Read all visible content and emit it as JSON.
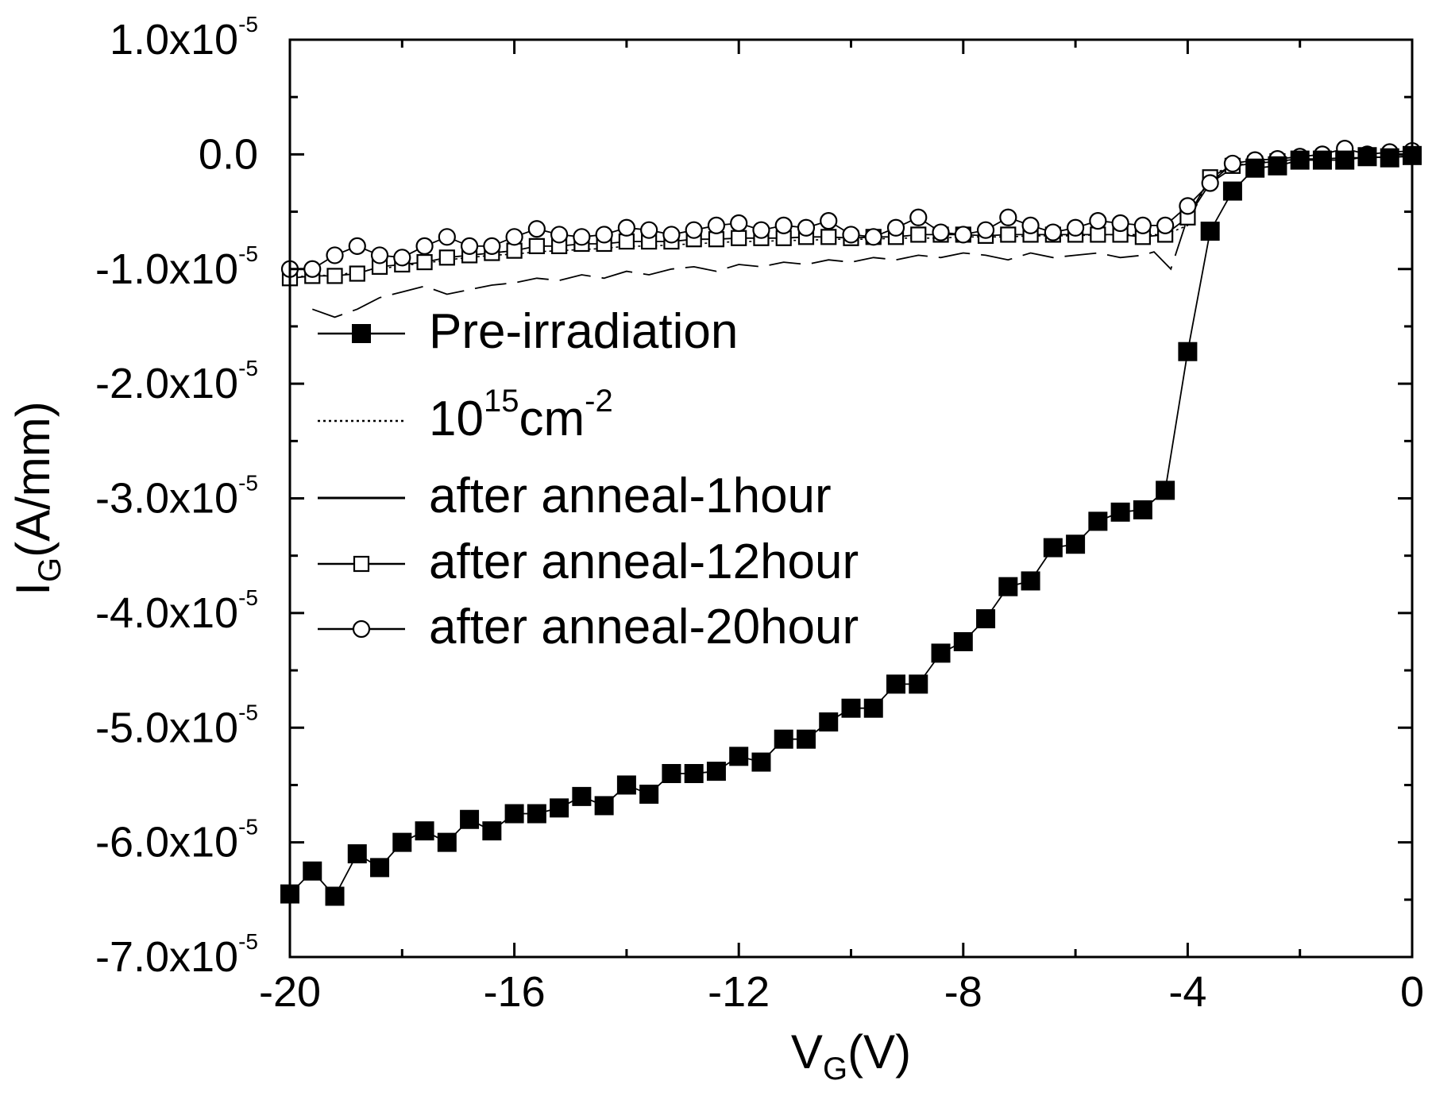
{
  "chart_data": {
    "type": "scatter",
    "xlabel": {
      "main": "V",
      "sub": "G",
      "unit": "(V)"
    },
    "ylabel": {
      "main": "I",
      "sub": "G",
      "unit": "(A/mm)"
    },
    "xlim": [
      -20,
      0
    ],
    "ylim": [
      -7e-05,
      1e-05
    ],
    "xticks": [
      -20,
      -16,
      -12,
      -8,
      -4,
      0
    ],
    "xtick_labels": [
      "-20",
      "-16",
      "-12",
      "-8",
      "-4",
      "0"
    ],
    "yticks": [
      1e-05,
      0,
      -1e-05,
      -2e-05,
      -3e-05,
      -4e-05,
      -5e-05,
      -6e-05,
      -7e-05
    ],
    "ytick_labels": [
      {
        "mant": "1.0x10",
        "exp": "-5"
      },
      {
        "mant": "0.0",
        "exp": ""
      },
      {
        "mant": "-1.0x10",
        "exp": "-5"
      },
      {
        "mant": "-2.0x10",
        "exp": "-5"
      },
      {
        "mant": "-3.0x10",
        "exp": "-5"
      },
      {
        "mant": "-4.0x10",
        "exp": "-5"
      },
      {
        "mant": "-5.0x10",
        "exp": "-5"
      },
      {
        "mant": "-6.0x10",
        "exp": "-5"
      },
      {
        "mant": "-7.0x10",
        "exp": "-5"
      }
    ],
    "grid": false,
    "legend_position": "center-left",
    "series": [
      {
        "name": "Pre-irradiation",
        "style": "line-filled-square",
        "x": [
          -20,
          -19.6,
          -19.2,
          -18.8,
          -18.4,
          -18,
          -17.6,
          -17.2,
          -16.8,
          -16.4,
          -16,
          -15.6,
          -15.2,
          -14.8,
          -14.4,
          -14,
          -13.6,
          -13.2,
          -12.8,
          -12.4,
          -12,
          -11.6,
          -11.2,
          -10.8,
          -10.4,
          -10,
          -9.6,
          -9.2,
          -8.8,
          -8.4,
          -8,
          -7.6,
          -7.2,
          -6.8,
          -6.4,
          -6,
          -5.6,
          -5.2,
          -4.8,
          -4.4,
          -4,
          -3.6,
          -3.2,
          -2.8,
          -2.4,
          -2,
          -1.6,
          -1.2,
          -0.8,
          -0.4,
          0
        ],
        "y": [
          -6.45e-05,
          -6.25e-05,
          -6.47e-05,
          -6.1e-05,
          -6.22e-05,
          -6e-05,
          -5.9e-05,
          -6e-05,
          -5.8e-05,
          -5.9e-05,
          -5.75e-05,
          -5.75e-05,
          -5.7e-05,
          -5.6e-05,
          -5.68e-05,
          -5.5e-05,
          -5.58e-05,
          -5.4e-05,
          -5.4e-05,
          -5.38e-05,
          -5.25e-05,
          -5.3e-05,
          -5.1e-05,
          -5.1e-05,
          -4.95e-05,
          -4.83e-05,
          -4.83e-05,
          -4.62e-05,
          -4.62e-05,
          -4.35e-05,
          -4.25e-05,
          -4.05e-05,
          -3.77e-05,
          -3.72e-05,
          -3.43e-05,
          -3.4e-05,
          -3.2e-05,
          -3.12e-05,
          -3.1e-05,
          -2.93e-05,
          -1.72e-05,
          -6.7e-06,
          -3.2e-06,
          -1.2e-06,
          -1e-06,
          -5e-07,
          -5e-07,
          -5e-07,
          -2e-07,
          -3e-07,
          -1e-07
        ]
      },
      {
        "name": "10^15 cm^-2",
        "style": "dotted-line",
        "x": [
          -20,
          -19.6,
          -19.2,
          -18.8,
          -18.4,
          -18,
          -17.6,
          -17.2,
          -16.8,
          -16.4,
          -16,
          -15.6,
          -15.2,
          -14.8,
          -14.4,
          -14,
          -13.6,
          -13.2,
          -12.8,
          -12.4,
          -12,
          -11.6,
          -11.2,
          -10.8,
          -10.4,
          -10,
          -9.6,
          -9.2,
          -8.8,
          -8.4,
          -8,
          -7.6,
          -7.2,
          -6.8,
          -6.4,
          -6,
          -5.6,
          -5.2,
          -4.8,
          -4.4,
          -4,
          -3.6,
          -3.2,
          -2.8,
          -2.4,
          -2,
          -1.6,
          -1.2,
          -0.8,
          -0.4,
          0
        ],
        "y": [
          -1.08e-05,
          -1.05e-05,
          -1.06e-05,
          -1.02e-05,
          -1e-05,
          -9.7e-06,
          -9.5e-06,
          -9.2e-06,
          -9e-06,
          -8.8e-06,
          -8.7e-06,
          -8.5e-06,
          -8.4e-06,
          -8.3e-06,
          -8.2e-06,
          -8e-06,
          -8e-06,
          -7.9e-06,
          -7.8e-06,
          -7.7e-06,
          -7.6e-06,
          -7.6e-06,
          -7.5e-06,
          -7.5e-06,
          -7.4e-06,
          -7.4e-06,
          -7.4e-06,
          -7.3e-06,
          -7.3e-06,
          -7.3e-06,
          -7.2e-06,
          -7.2e-06,
          -7.2e-06,
          -7.1e-06,
          -7.1e-06,
          -7.1e-06,
          -7e-06,
          -7e-06,
          -7e-06,
          -7e-06,
          -6.2e-06,
          -1.8e-06,
          -1e-06,
          -7e-07,
          -6e-07,
          -5e-07,
          -4e-07,
          -3e-07,
          -3e-07,
          -2e-07,
          -2e-07
        ]
      },
      {
        "name": "after anneal-1hour",
        "style": "solid-line",
        "x": [
          -19.6,
          -19.2,
          -18.8,
          -18.4,
          -18,
          -17.6,
          -17.2,
          -16.8,
          -16.4,
          -16,
          -15.6,
          -15.2,
          -14.8,
          -14.4,
          -14,
          -13.6,
          -13.2,
          -12.8,
          -12.4,
          -12,
          -11.6,
          -11.2,
          -10.8,
          -10.4,
          -10,
          -9.6,
          -9.2,
          -8.8,
          -8.4,
          -8,
          -7.6,
          -7.2,
          -6.8,
          -6.4,
          -6,
          -5.6,
          -5.2,
          -4.8,
          -4.6,
          -4.3,
          -4.0,
          -3.6,
          -3.2
        ],
        "y": [
          -1.35e-05,
          -1.42e-05,
          -1.35e-05,
          -1.25e-05,
          -1.2e-05,
          -1.15e-05,
          -1.22e-05,
          -1.18e-05,
          -1.14e-05,
          -1.12e-05,
          -1.08e-05,
          -1.1e-05,
          -1.05e-05,
          -1.08e-05,
          -1.02e-05,
          -1.05e-05,
          -1e-05,
          -9.8e-06,
          -1.02e-05,
          -9.6e-06,
          -9.8e-06,
          -9.4e-06,
          -9.6e-06,
          -9.2e-06,
          -9.4e-06,
          -9e-06,
          -9.2e-06,
          -8.8e-06,
          -9e-06,
          -8.6e-06,
          -8.8e-06,
          -9.2e-06,
          -8.6e-06,
          -9e-06,
          -8.8e-06,
          -8.6e-06,
          -9e-06,
          -8.8e-06,
          -8.5e-06,
          -1e-05,
          -5.5e-06,
          -2.5e-06,
          -1.2e-06
        ]
      },
      {
        "name": "after anneal-12hour",
        "style": "line-open-square",
        "x": [
          -20,
          -19.6,
          -19.2,
          -18.8,
          -18.4,
          -18,
          -17.6,
          -17.2,
          -16.8,
          -16.4,
          -16,
          -15.6,
          -15.2,
          -14.8,
          -14.4,
          -14,
          -13.6,
          -13.2,
          -12.8,
          -12.4,
          -12,
          -11.6,
          -11.2,
          -10.8,
          -10.4,
          -10,
          -9.6,
          -9.2,
          -8.8,
          -8.4,
          -8,
          -7.6,
          -7.2,
          -6.8,
          -6.4,
          -6,
          -5.6,
          -5.2,
          -4.8,
          -4.4,
          -4,
          -3.6,
          -3.2,
          -2.8,
          -2.4,
          -2,
          -1.6,
          -1.2,
          -0.8,
          -0.4,
          0
        ],
        "y": [
          -1.08e-05,
          -1.06e-05,
          -1.06e-05,
          -1.04e-05,
          -9.8e-06,
          -9.6e-06,
          -9.4e-06,
          -9e-06,
          -8.8e-06,
          -8.6e-06,
          -8.4e-06,
          -8e-06,
          -8e-06,
          -7.8e-06,
          -7.8e-06,
          -7.6e-06,
          -7.6e-06,
          -7.6e-06,
          -7.4e-06,
          -7.4e-06,
          -7.3e-06,
          -7.3e-06,
          -7.3e-06,
          -7.2e-06,
          -7.2e-06,
          -7.3e-06,
          -7.2e-06,
          -7.2e-06,
          -7e-06,
          -7e-06,
          -7e-06,
          -7.1e-06,
          -7e-06,
          -7e-06,
          -7e-06,
          -7e-06,
          -7e-06,
          -7e-06,
          -7.2e-06,
          -7e-06,
          -5.5e-06,
          -2e-06,
          -1e-06,
          -8e-07,
          -6e-07,
          -4e-07,
          -4e-07,
          -3e-07,
          -3e-07,
          -2e-07,
          -2e-07
        ]
      },
      {
        "name": "after anneal-20hour",
        "style": "line-open-circle",
        "x": [
          -20,
          -19.6,
          -19.2,
          -18.8,
          -18.4,
          -18,
          -17.6,
          -17.2,
          -16.8,
          -16.4,
          -16,
          -15.6,
          -15.2,
          -14.8,
          -14.4,
          -14,
          -13.6,
          -13.2,
          -12.8,
          -12.4,
          -12,
          -11.6,
          -11.2,
          -10.8,
          -10.4,
          -10,
          -9.6,
          -9.2,
          -8.8,
          -8.4,
          -8,
          -7.6,
          -7.2,
          -6.8,
          -6.4,
          -6,
          -5.6,
          -5.2,
          -4.8,
          -4.4,
          -4,
          -3.6,
          -3.2,
          -2.8,
          -2.4,
          -2,
          -1.6,
          -1.2,
          -0.8,
          -0.4,
          0
        ],
        "y": [
          -1e-05,
          -1e-05,
          -8.8e-06,
          -8e-06,
          -8.8e-06,
          -9e-06,
          -8e-06,
          -7.2e-06,
          -8e-06,
          -8e-06,
          -7.2e-06,
          -6.5e-06,
          -7e-06,
          -7.2e-06,
          -7e-06,
          -6.4e-06,
          -6.6e-06,
          -7e-06,
          -6.6e-06,
          -6.2e-06,
          -6e-06,
          -6.6e-06,
          -6.2e-06,
          -6.4e-06,
          -5.8e-06,
          -7e-06,
          -7.2e-06,
          -6.4e-06,
          -5.5e-06,
          -6.8e-06,
          -7e-06,
          -6.6e-06,
          -5.5e-06,
          -6.2e-06,
          -6.8e-06,
          -6.4e-06,
          -5.8e-06,
          -6e-06,
          -6.2e-06,
          -6.2e-06,
          -4.5e-06,
          -2.5e-06,
          -8e-07,
          -5e-07,
          -4e-07,
          -2e-07,
          0.0,
          5e-07,
          0.0,
          2e-07,
          3e-07
        ]
      }
    ],
    "legend": [
      {
        "label": "Pre-irradiation",
        "style": "line-filled-square",
        "base": "",
        "sup": "",
        "suffix": ""
      },
      {
        "label": "",
        "style": "dotted-line",
        "base": "10",
        "sup": "15",
        "suffix": "cm",
        "sup2": "-2"
      },
      {
        "label": "after anneal-1hour",
        "style": "solid-line",
        "base": "",
        "sup": "",
        "suffix": ""
      },
      {
        "label": "after anneal-12hour",
        "style": "line-open-square",
        "base": "",
        "sup": "",
        "suffix": ""
      },
      {
        "label": "after anneal-20hour",
        "style": "line-open-circle",
        "base": "",
        "sup": "",
        "suffix": ""
      }
    ]
  }
}
